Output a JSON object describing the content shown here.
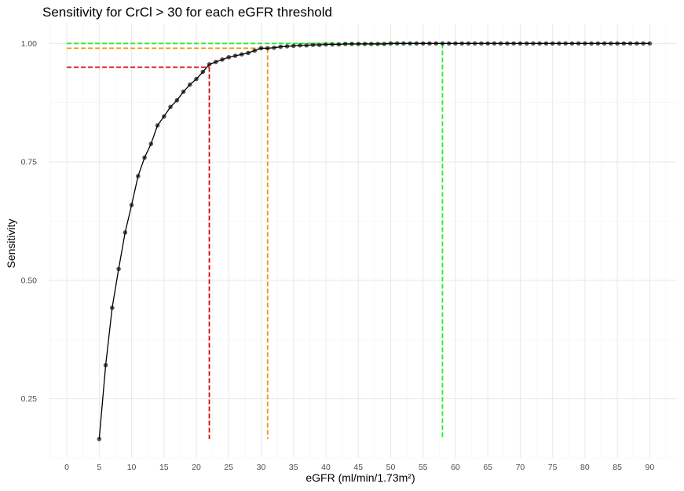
{
  "chart_data": {
    "type": "line",
    "title": "Sensitivity for CrCl > 30 for each eGFR threshold",
    "xlabel": "eGFR (ml/min/1.73m²)",
    "ylabel": "Sensitivity",
    "xlim": [
      -2.8,
      94.2
    ],
    "ylim": [
      0.125,
      1.042
    ],
    "x_ticks": [
      0,
      5,
      10,
      15,
      20,
      25,
      30,
      35,
      40,
      45,
      50,
      55,
      60,
      65,
      70,
      75,
      80,
      85,
      90
    ],
    "y_ticks": [
      0.25,
      0.5,
      0.75,
      1.0
    ],
    "y_tick_labels": [
      "0.25",
      "0.50",
      "0.75",
      "1.00"
    ],
    "grid": true,
    "series": [
      {
        "type": "line+points",
        "color": "#000000",
        "x": [
          5,
          6,
          7,
          8,
          9,
          10,
          11,
          12,
          13,
          14,
          15,
          16,
          17,
          18,
          19,
          20,
          21,
          22,
          23,
          24,
          25,
          26,
          27,
          28,
          29,
          30,
          31,
          32,
          33,
          34,
          35,
          36,
          37,
          38,
          39,
          40,
          41,
          42,
          43,
          44,
          45,
          46,
          47,
          48,
          49,
          50,
          51,
          52,
          53,
          54,
          55,
          56,
          57,
          58,
          59,
          60,
          61,
          62,
          63,
          64,
          65,
          66,
          67,
          68,
          69,
          70,
          71,
          72,
          73,
          74,
          75,
          76,
          77,
          78,
          79,
          80,
          81,
          82,
          83,
          84,
          85,
          86,
          87,
          88,
          89,
          90
        ],
        "y": [
          0.165,
          0.321,
          0.442,
          0.524,
          0.601,
          0.659,
          0.72,
          0.759,
          0.788,
          0.827,
          0.846,
          0.866,
          0.88,
          0.898,
          0.913,
          0.925,
          0.94,
          0.956,
          0.961,
          0.966,
          0.971,
          0.974,
          0.977,
          0.98,
          0.985,
          0.99,
          0.99,
          0.991,
          0.993,
          0.994,
          0.995,
          0.996,
          0.996,
          0.997,
          0.997,
          0.998,
          0.998,
          0.998,
          0.999,
          0.999,
          0.999,
          0.999,
          0.999,
          0.999,
          0.999,
          1.0,
          1.0,
          1.0,
          1.0,
          1.0,
          1.0,
          1.0,
          1.0,
          1.0,
          1.0,
          1.0,
          1.0,
          1.0,
          1.0,
          1.0,
          1.0,
          1.0,
          1.0,
          1.0,
          1.0,
          1.0,
          1.0,
          1.0,
          1.0,
          1.0,
          1.0,
          1.0,
          1.0,
          1.0,
          1.0,
          1.0,
          1.0,
          1.0,
          1.0,
          1.0,
          1.0,
          1.0,
          1.0,
          1.0,
          1.0,
          1.0
        ]
      }
    ],
    "reference_lines": [
      {
        "color": "#dd0000",
        "x": 22,
        "y": 0.95
      },
      {
        "color": "#f0950a",
        "x": 31,
        "y": 0.99
      },
      {
        "color": "#22ee22",
        "x": 58,
        "y": 1.0
      }
    ],
    "reference_line_floor": 0.165
  }
}
